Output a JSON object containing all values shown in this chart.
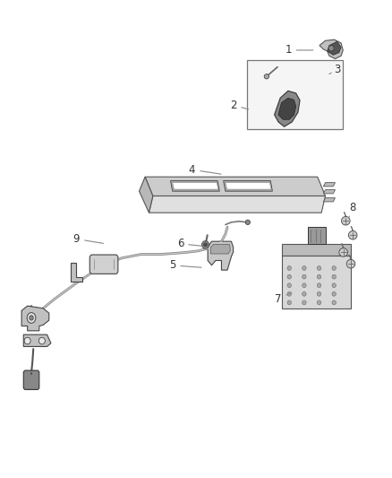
{
  "background_color": "#ffffff",
  "fig_width": 4.38,
  "fig_height": 5.33,
  "dpi": 100,
  "line_color": "#555555",
  "text_color": "#333333",
  "font_size": 8.5,
  "label_positions": {
    "1": [
      0.735,
      0.895,
      0.805,
      0.895
    ],
    "2": [
      0.595,
      0.78,
      0.64,
      0.77
    ],
    "3": [
      0.86,
      0.855,
      0.84,
      0.845
    ],
    "4": [
      0.49,
      0.645,
      0.57,
      0.635
    ],
    "5": [
      0.44,
      0.445,
      0.52,
      0.44
    ],
    "6": [
      0.46,
      0.49,
      0.52,
      0.485
    ],
    "7": [
      0.71,
      0.375,
      0.75,
      0.39
    ],
    "8": [
      0.9,
      0.565,
      0.89,
      0.545
    ],
    "9": [
      0.195,
      0.5,
      0.27,
      0.49
    ]
  }
}
